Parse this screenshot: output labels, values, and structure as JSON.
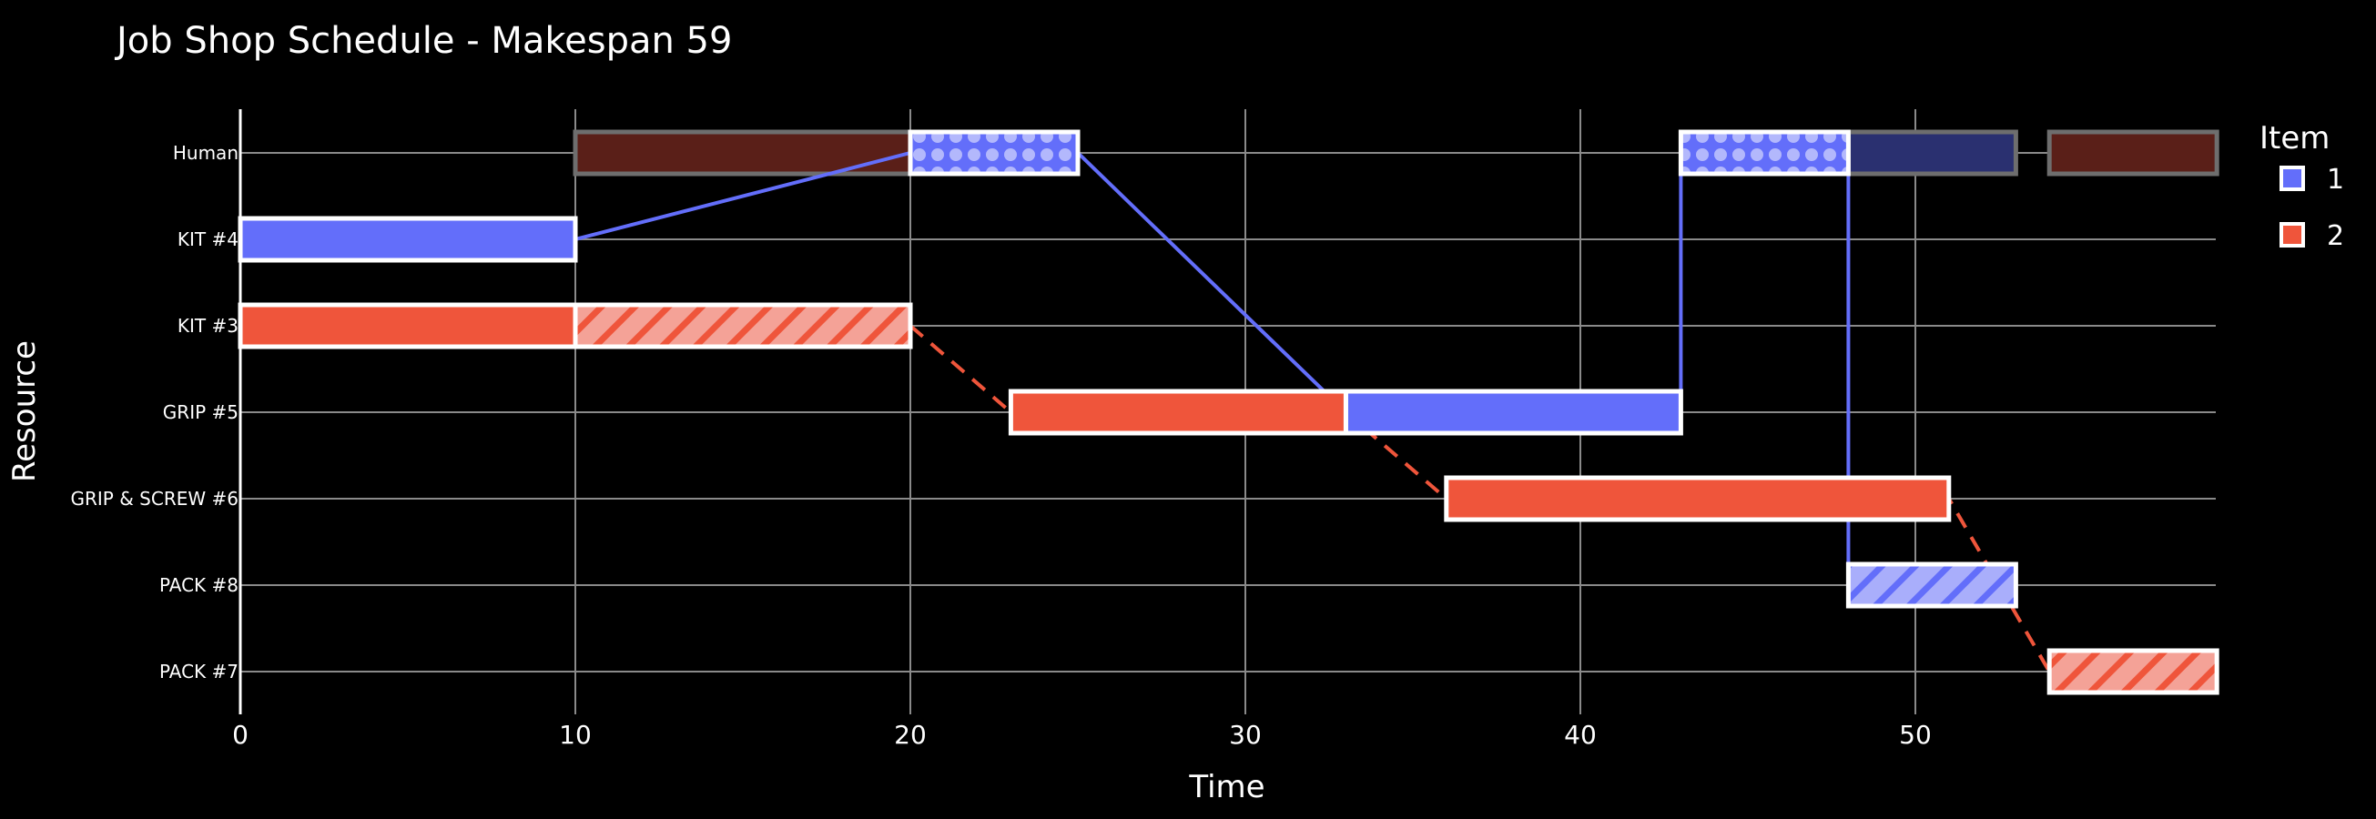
{
  "chart_data": {
    "type": "gantt",
    "title": "Job Shop Schedule - Makespan 59",
    "xlabel": "Time",
    "ylabel": "Resource",
    "xlim": [
      0,
      59
    ],
    "xticks": [
      0,
      10,
      20,
      30,
      40,
      50
    ],
    "resources": [
      "Human",
      "KIT #4",
      "KIT #3",
      "GRIP #5",
      "GRIP & SCREW #6",
      "PACK #8",
      "PACK #7"
    ],
    "legend": {
      "title": "Item",
      "position": "top-right",
      "entries": [
        {
          "name": "1",
          "color": "#636efa"
        },
        {
          "name": "2",
          "color": "#ef553b"
        }
      ]
    },
    "tasks": [
      {
        "resource": "KIT #4",
        "item": "1",
        "start": 0,
        "end": 10,
        "style": "solid"
      },
      {
        "resource": "Human",
        "item": "1",
        "start": 20,
        "end": 25,
        "style": "dots"
      },
      {
        "resource": "GRIP #5",
        "item": "1",
        "start": 33,
        "end": 43,
        "style": "solid"
      },
      {
        "resource": "Human",
        "item": "1",
        "start": 43,
        "end": 48,
        "style": "dots"
      },
      {
        "resource": "PACK #8",
        "item": "1",
        "start": 48,
        "end": 53,
        "style": "hatch"
      },
      {
        "resource": "KIT #3",
        "item": "2",
        "start": 0,
        "end": 10,
        "style": "solid"
      },
      {
        "resource": "KIT #3",
        "item": "2",
        "start": 10,
        "end": 20,
        "style": "hatch"
      },
      {
        "resource": "GRIP #5",
        "item": "2",
        "start": 23,
        "end": 33,
        "style": "solid"
      },
      {
        "resource": "GRIP & SCREW #6",
        "item": "2",
        "start": 36,
        "end": 51,
        "style": "solid"
      },
      {
        "resource": "PACK #7",
        "item": "2",
        "start": 54,
        "end": 59,
        "style": "hatch"
      }
    ],
    "human_background": [
      {
        "start": 10,
        "end": 20,
        "item": "2"
      },
      {
        "start": 48,
        "end": 53,
        "item": "1"
      },
      {
        "start": 54,
        "end": 59,
        "item": "2"
      }
    ],
    "links": [
      {
        "item": "1",
        "dash": false,
        "points": [
          [
            10,
            "KIT #4"
          ],
          [
            20,
            "Human"
          ],
          [
            25,
            "Human"
          ],
          [
            33,
            "GRIP #5"
          ],
          [
            43,
            "GRIP #5"
          ],
          [
            43,
            "Human"
          ],
          [
            48,
            "Human"
          ],
          [
            48,
            "PACK #8"
          ]
        ]
      },
      {
        "item": "2",
        "dash": true,
        "points": [
          [
            20,
            "KIT #3"
          ],
          [
            23,
            "GRIP #5"
          ],
          [
            33,
            "GRIP #5"
          ],
          [
            36,
            "GRIP & SCREW #6"
          ],
          [
            51,
            "GRIP & SCREW #6"
          ],
          [
            54,
            "PACK #7"
          ]
        ]
      }
    ]
  }
}
